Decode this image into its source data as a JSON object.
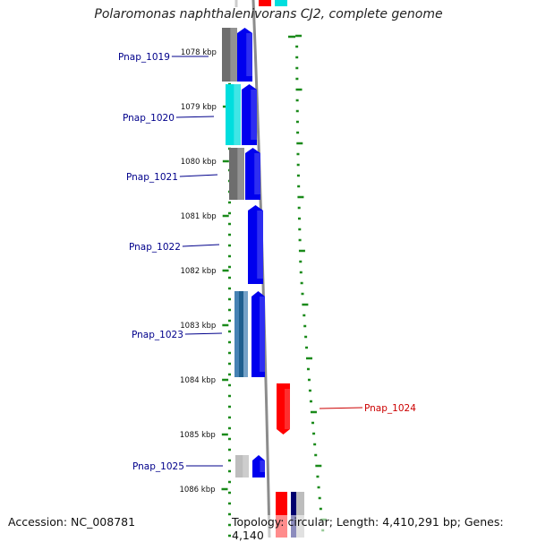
{
  "title": "Polaromonas naphthalenivorans CJ2, complete genome",
  "accession_text": "Accession: NC_008781",
  "summary_text": "Topology: circular; Length: 4,410,291 bp; Genes: 4,140",
  "colors": {
    "tick": "#1a8a1a",
    "gene_label": "#00008b",
    "gene_label_red": "#cc0000",
    "forward_gene": "#0000ee",
    "reverse_gene": "#ff0000",
    "backbone": "#8c8c8c",
    "cog_gray": "#6e6e6e",
    "cog_cyan": "#00dede",
    "cog_steel": "#4682b4",
    "cog_light": "#bdbdbd",
    "cog_navy": "#00006e"
  },
  "ruler": [
    {
      "label": "1078 kbp"
    },
    {
      "label": "1079 kbp"
    },
    {
      "label": "1080 kbp"
    },
    {
      "label": "1081 kbp"
    },
    {
      "label": "1082 kbp"
    },
    {
      "label": "1083 kbp"
    },
    {
      "label": "1084 kbp"
    },
    {
      "label": "1085 kbp"
    },
    {
      "label": "1086 kbp"
    }
  ],
  "genes": [
    {
      "label": "Pnap_1019",
      "strand": "forward",
      "cog_color": "cog_gray"
    },
    {
      "label": "Pnap_1020",
      "strand": "forward",
      "cog_color": "cog_cyan"
    },
    {
      "label": "Pnap_1021",
      "strand": "forward",
      "cog_color": "cog_gray"
    },
    {
      "label": "Pnap_1022",
      "strand": "forward",
      "cog_color": null
    },
    {
      "label": "Pnap_1023",
      "strand": "forward",
      "cog_color": "cog_steel"
    },
    {
      "label": "Pnap_1024",
      "strand": "reverse",
      "cog_color": null
    },
    {
      "label": "Pnap_1025",
      "strand": "forward",
      "cog_color": "cog_light"
    }
  ]
}
